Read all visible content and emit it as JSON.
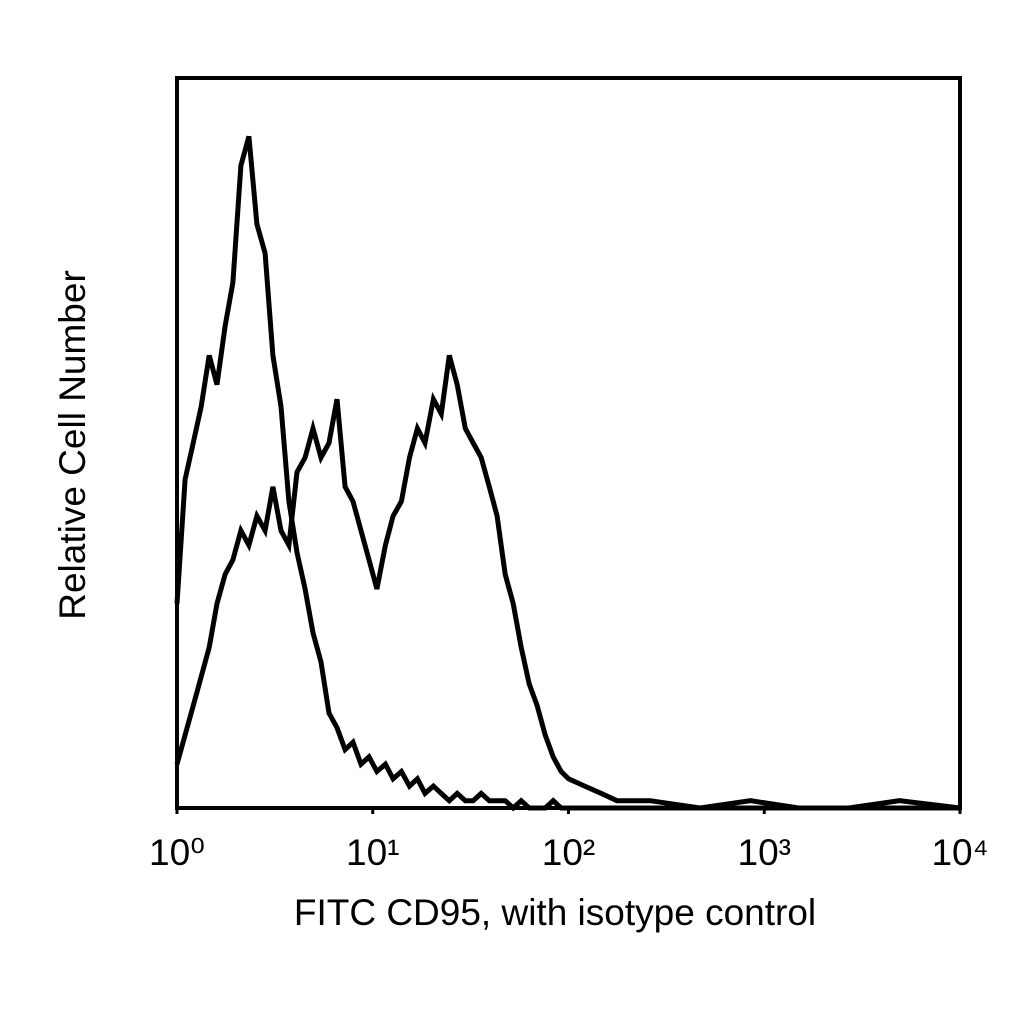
{
  "chart_data": {
    "type": "line",
    "x_label": "FITC CD95, with isotype control",
    "y_label": "Relative Cell Number",
    "log_x": true,
    "xlim": [
      1,
      10000
    ],
    "xticks": [
      {
        "value": 1,
        "label": "10⁰"
      },
      {
        "value": 10,
        "label": "10¹"
      },
      {
        "value": 100,
        "label": "10²"
      },
      {
        "value": 1000,
        "label": "10³"
      },
      {
        "value": 10000,
        "label": "10⁴"
      }
    ],
    "ylim": [
      0,
      100
    ],
    "x": [
      1.0,
      1.1,
      1.21,
      1.33,
      1.46,
      1.6,
      1.76,
      1.93,
      2.12,
      2.33,
      2.56,
      2.82,
      3.09,
      3.4,
      3.73,
      4.1,
      4.51,
      4.95,
      5.44,
      5.98,
      6.57,
      7.22,
      7.93,
      8.71,
      9.57,
      10.5,
      11.6,
      12.7,
      14.0,
      15.4,
      16.9,
      18.5,
      20.4,
      22.4,
      24.6,
      27,
      29.7,
      32.6,
      35.8,
      39.4,
      43.2,
      47.5,
      52.2,
      57.3,
      63,
      69.2,
      76,
      83.5,
      91.7,
      100,
      121,
      147,
      177,
      261,
      470,
      850,
      1500,
      2700,
      4900,
      10000
    ],
    "series": [
      {
        "color": "#000000",
        "values": [
          28,
          45,
          50,
          55,
          62,
          58,
          66,
          72,
          88,
          92,
          80,
          76,
          62,
          55,
          42,
          35,
          30,
          24,
          20,
          13,
          11,
          8,
          9,
          6,
          7,
          5,
          6,
          4,
          5,
          3,
          4,
          2,
          3,
          2,
          1,
          2,
          1,
          1,
          2,
          1,
          1,
          1,
          0,
          1,
          0,
          0,
          0,
          1,
          0,
          0,
          0,
          0,
          0,
          0,
          0,
          0,
          0,
          0,
          0,
          0
        ]
      },
      {
        "color": "#000000",
        "values": [
          6,
          10,
          14,
          18,
          22,
          28,
          32,
          34,
          38,
          36,
          40,
          38,
          44,
          38,
          36,
          46,
          48,
          52,
          48,
          50,
          56,
          44,
          42,
          38,
          34,
          30,
          36,
          40,
          42,
          48,
          52,
          50,
          56,
          54,
          62,
          58,
          52,
          50,
          48,
          44,
          40,
          32,
          28,
          22,
          17,
          14,
          10,
          7,
          5,
          4,
          3,
          2,
          1,
          1,
          0,
          1,
          0,
          0,
          1,
          0
        ]
      }
    ]
  }
}
